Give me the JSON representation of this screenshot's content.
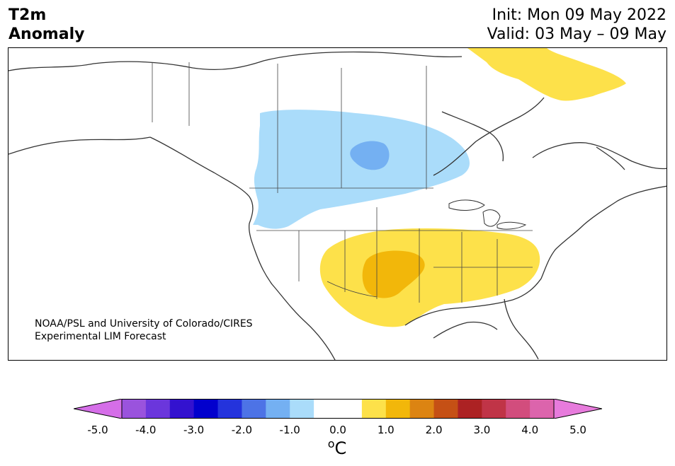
{
  "title": {
    "line1": "T2m",
    "line2": "Anomaly"
  },
  "info": {
    "init": "Init: Mon 09 May 2022",
    "valid": "Valid: 03 May – 09 May"
  },
  "credit": {
    "line1": "NOAA/PSL and University of Colorado/CIRES",
    "line2": "Experimental LIM Forecast"
  },
  "map": {
    "region": "North America",
    "anomalies": [
      {
        "region": "Central Canada / Northern Plains",
        "category": "cold",
        "range": "-1.0 to -0.5",
        "color": "#aadcfa"
      },
      {
        "region": "Manitoba core",
        "category": "cold",
        "range": "-1.5 to -1.0",
        "color": "#74b0f2"
      },
      {
        "region": "Southern Plains / Southeast US",
        "category": "warm",
        "range": "0.5 to 1.0",
        "color": "#fde14a"
      },
      {
        "region": "Texas / Oklahoma core",
        "category": "warm",
        "range": "1.0 to 1.5",
        "color": "#f2b70a"
      },
      {
        "region": "Greenland",
        "category": "warm",
        "range": "0.5 to 1.0",
        "color": "#fde14a"
      }
    ]
  },
  "colorbar": {
    "unit": "C",
    "unit_superscript": "o",
    "ticks": [
      "-5.0",
      "-4.0",
      "-3.0",
      "-2.0",
      "-1.0",
      "0.0",
      "1.0",
      "2.0",
      "3.0",
      "4.0",
      "5.0"
    ],
    "min": -5.0,
    "max": 5.0,
    "step": 0.5,
    "colors": [
      "#d56ee8",
      "#9a53dd",
      "#6b36dc",
      "#3312cf",
      "#0200cd",
      "#2433dc",
      "#4d73e6",
      "#74b0f2",
      "#aadcfa",
      "#ffffff",
      "#ffffff",
      "#fde14a",
      "#f2b70a",
      "#dc8412",
      "#c55015",
      "#ac2223",
      "#c03447",
      "#d24d7d",
      "#dc64ac",
      "#e77bdc"
    ]
  }
}
